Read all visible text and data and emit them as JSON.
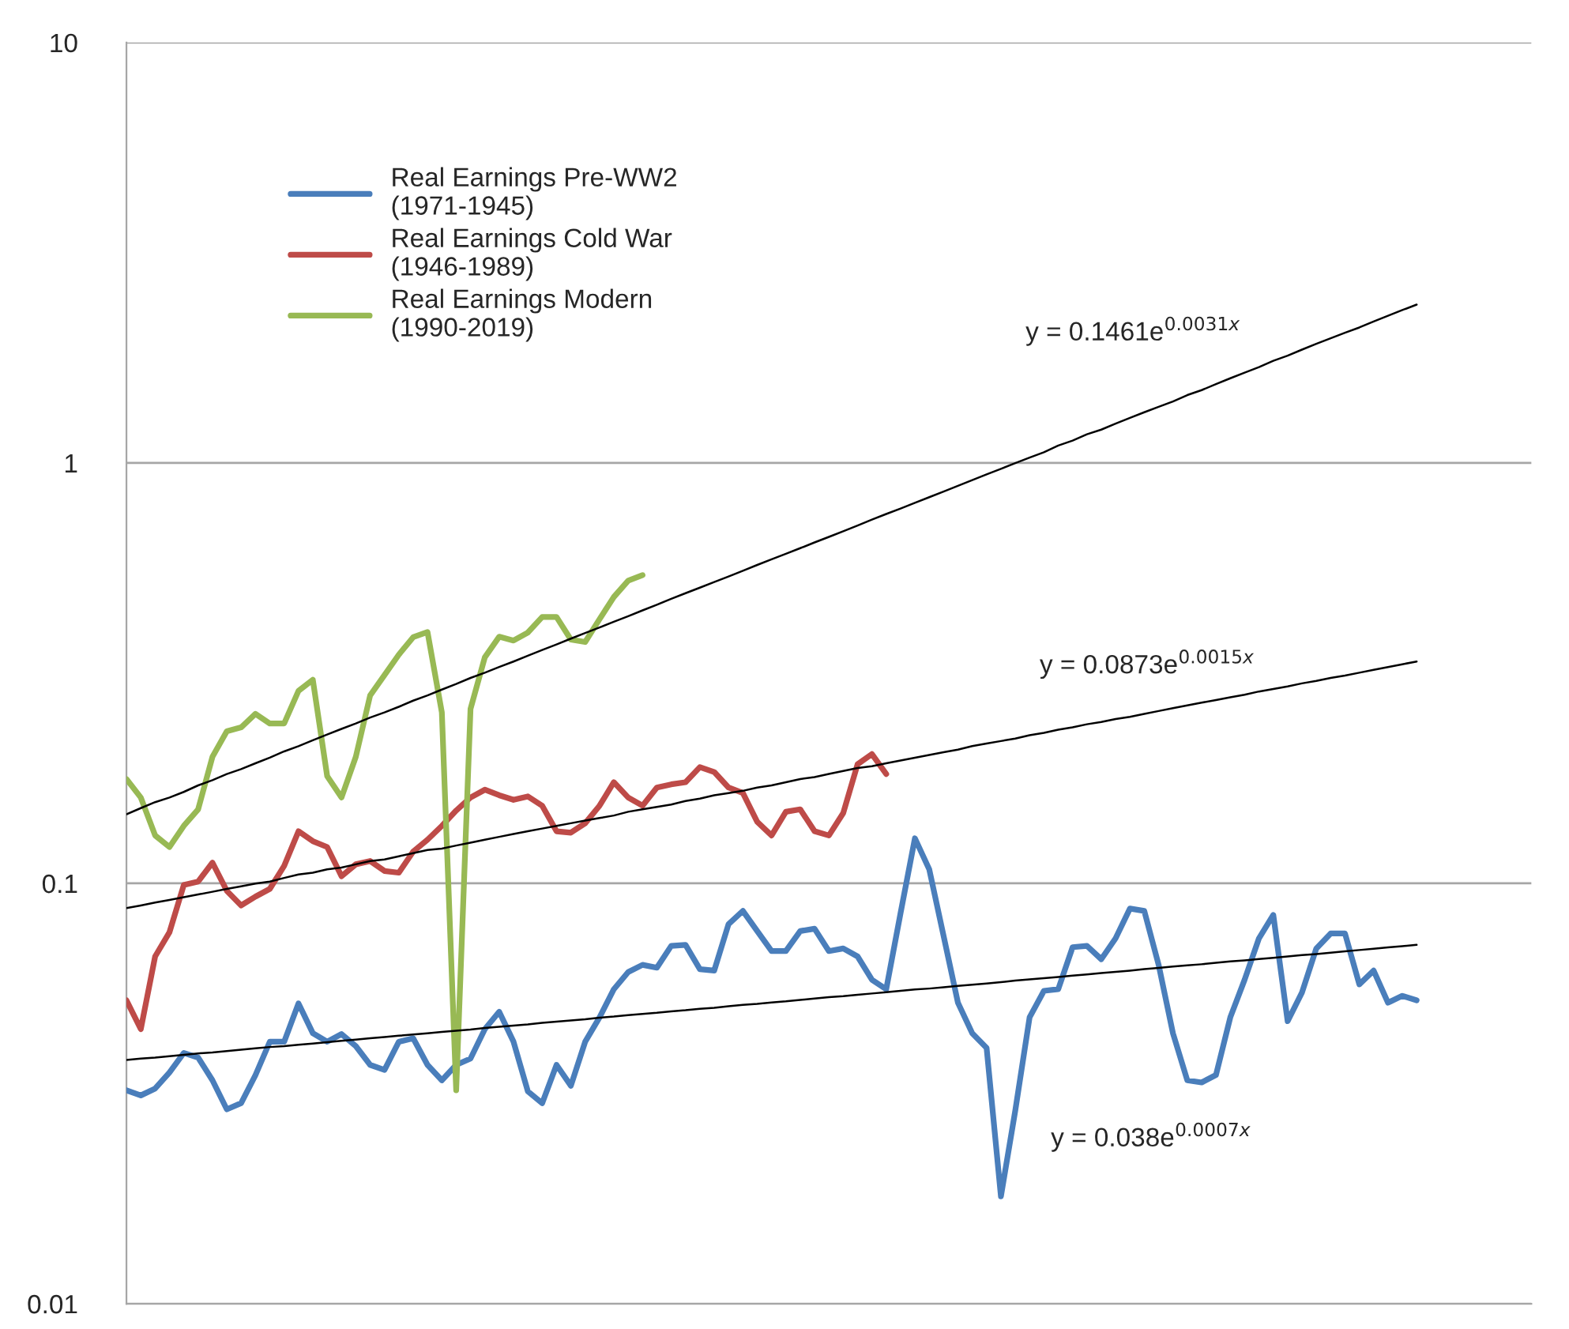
{
  "chart_data": {
    "type": "line",
    "log": "y",
    "ylim": [
      0.01,
      10
    ],
    "yticks": [
      0.01,
      0.1,
      1,
      10
    ],
    "tick_labels": "y",
    "grid": "y",
    "legend": "top left",
    "line_style": "solid",
    "marker": "none",
    "categories": [
      null,
      null,
      null,
      null,
      null,
      null,
      null,
      null,
      null,
      null,
      null,
      null,
      null,
      null,
      null,
      null,
      null,
      null,
      null,
      null,
      null,
      null,
      null,
      null,
      null,
      null,
      null,
      null,
      null,
      null,
      null,
      null,
      null,
      null,
      null,
      null,
      null,
      null,
      null,
      null,
      null,
      null,
      null,
      null,
      null,
      null,
      null,
      null,
      null,
      null,
      null,
      null,
      null,
      null,
      null,
      null,
      null,
      null,
      null,
      null,
      null,
      null,
      null,
      null,
      null,
      null,
      null,
      null,
      null,
      null,
      null,
      null,
      null,
      null,
      null,
      null,
      null,
      null,
      null,
      null,
      null,
      null,
      null,
      null,
      null,
      null,
      null,
      null,
      null,
      null,
      null,
      null,
      null,
      null,
      null,
      null,
      null,
      null,
      null
    ],
    "series": [
      {
        "name": "Real Earnings Pre-WW2\n(1971-1945)",
        "color": "#4a7ebb",
        "values": [
          0.0322,
          0.0313,
          0.0325,
          0.0355,
          0.0395,
          0.0385,
          0.034,
          0.029,
          0.03,
          0.035,
          0.042,
          0.042,
          0.0518,
          0.044,
          0.042,
          0.0438,
          0.041,
          0.037,
          0.036,
          0.042,
          0.0428,
          0.037,
          0.034,
          0.037,
          0.0383,
          0.045,
          0.0495,
          0.042,
          0.032,
          0.03,
          0.037,
          0.033,
          0.042,
          0.048,
          0.056,
          0.0615,
          0.064,
          0.063,
          0.071,
          0.0714,
          0.0625,
          0.062,
          0.08,
          0.086,
          0.077,
          0.069,
          0.069,
          0.077,
          0.078,
          0.069,
          0.07,
          0.067,
          0.059,
          0.056,
          0.085,
          0.128,
          0.108,
          0.075,
          0.052,
          0.044,
          0.0406,
          0.018,
          0.0288,
          0.048,
          0.0555,
          0.056,
          0.0705,
          0.071,
          0.066,
          0.074,
          0.0871,
          0.086,
          0.064,
          0.044,
          0.034,
          0.0336,
          0.035,
          0.048,
          0.059,
          0.074,
          0.0841,
          0.047,
          0.055,
          0.07,
          0.076,
          0.076,
          0.0575,
          0.062,
          0.052,
          0.054,
          0.0527,
          null,
          null,
          null,
          null,
          null,
          null,
          null,
          null
        ]
      },
      {
        "name": "Real Earnings Cold War\n(1946-1989)",
        "color": "#be4b48",
        "values": [
          0.0527,
          0.045,
          0.067,
          0.0765,
          0.0991,
          0.101,
          0.112,
          0.096,
          0.0886,
          0.093,
          0.097,
          0.11,
          0.133,
          0.126,
          0.122,
          0.104,
          0.111,
          0.113,
          0.107,
          0.106,
          0.119,
          0.127,
          0.137,
          0.149,
          0.16,
          0.167,
          0.162,
          0.158,
          0.161,
          0.153,
          0.133,
          0.132,
          0.139,
          0.153,
          0.174,
          0.16,
          0.153,
          0.169,
          0.172,
          0.174,
          0.189,
          0.184,
          0.169,
          0.164,
          0.14,
          0.13,
          0.148,
          0.15,
          0.133,
          0.13,
          0.147,
          0.192,
          0.203,
          0.182,
          null,
          null,
          null,
          null,
          null,
          null,
          null,
          null,
          null,
          null,
          null,
          null,
          null,
          null,
          null,
          null,
          null,
          null,
          null,
          null,
          null,
          null,
          null,
          null,
          null,
          null,
          null,
          null,
          null,
          null,
          null,
          null,
          null,
          null,
          null,
          null,
          null,
          null,
          null,
          null,
          null,
          null,
          null,
          null,
          null
        ]
      },
      {
        "name": "Real Earnings Modern\n(1990-2019)",
        "color": "#98b954",
        "values": [
          0.177,
          0.16,
          0.13,
          0.122,
          0.137,
          0.15,
          0.2,
          0.23,
          0.235,
          0.253,
          0.24,
          0.24,
          0.287,
          0.305,
          0.18,
          0.16,
          0.2,
          0.28,
          0.313,
          0.35,
          0.385,
          0.396,
          0.255,
          0.0322,
          0.26,
          0.345,
          0.386,
          0.378,
          0.395,
          0.43,
          0.43,
          0.38,
          0.375,
          0.425,
          0.48,
          0.525,
          0.541,
          null,
          null,
          null,
          null,
          null,
          null,
          null,
          null,
          null,
          null,
          null,
          null,
          null,
          null,
          null,
          null,
          null,
          null,
          null,
          null,
          null,
          null,
          null,
          null,
          null,
          null,
          null,
          null,
          null,
          null,
          null,
          null,
          null,
          null,
          null,
          null,
          null,
          null,
          null,
          null,
          null,
          null,
          null,
          null,
          null,
          null,
          null,
          null,
          null,
          null,
          null,
          null,
          null,
          null,
          null,
          null,
          null,
          null,
          null,
          null,
          null,
          null
        ]
      },
      {
        "type": "line",
        "color": "#000000",
        "values": [
          0.146,
          0.151,
          0.156,
          0.16,
          0.165,
          0.171,
          0.176,
          0.182,
          0.187,
          0.193,
          0.199,
          0.206,
          0.212,
          0.219,
          0.226,
          0.233,
          0.24,
          0.248,
          0.255,
          0.263,
          0.272,
          0.28,
          0.289,
          0.298,
          0.308,
          0.317,
          0.327,
          0.337,
          0.348,
          0.359,
          0.37,
          0.382,
          0.394,
          0.406,
          0.419,
          0.432,
          0.446,
          0.46,
          0.475,
          0.49,
          0.505,
          0.521,
          0.537,
          0.554,
          0.572,
          0.59,
          0.608,
          0.627,
          0.647,
          0.667,
          0.688,
          0.71,
          0.733,
          0.756,
          0.779,
          0.804,
          0.829,
          0.855,
          0.882,
          0.91,
          0.939,
          0.968,
          0.999,
          1.03,
          1.06,
          1.1,
          1.13,
          1.17,
          1.2,
          1.24,
          1.28,
          1.32,
          1.36,
          1.4,
          1.45,
          1.49,
          1.54,
          1.59,
          1.64,
          1.69,
          1.75,
          1.8,
          1.86,
          1.92,
          1.98,
          2.04,
          2.1,
          2.17,
          2.24,
          2.31,
          2.38,
          null,
          null,
          null,
          null,
          null,
          null,
          null,
          null
        ]
      },
      {
        "type": "line",
        "color": "#000000",
        "values": [
          0.0873,
          0.0886,
          0.09,
          0.0913,
          0.0927,
          0.0941,
          0.0955,
          0.097,
          0.0984,
          0.0999,
          0.101,
          0.103,
          0.105,
          0.106,
          0.108,
          0.109,
          0.111,
          0.113,
          0.114,
          0.116,
          0.118,
          0.12,
          0.121,
          0.123,
          0.125,
          0.127,
          0.129,
          0.131,
          0.133,
          0.135,
          0.137,
          0.139,
          0.141,
          0.143,
          0.145,
          0.148,
          0.15,
          0.152,
          0.154,
          0.157,
          0.159,
          0.162,
          0.164,
          0.166,
          0.169,
          0.171,
          0.174,
          0.177,
          0.179,
          0.182,
          0.185,
          0.188,
          0.19,
          0.193,
          0.196,
          0.199,
          0.202,
          0.205,
          0.208,
          0.212,
          0.215,
          0.218,
          0.221,
          0.225,
          0.228,
          0.232,
          0.235,
          0.239,
          0.242,
          0.246,
          0.249,
          0.253,
          0.257,
          0.261,
          0.265,
          0.269,
          0.273,
          0.277,
          0.281,
          0.286,
          0.29,
          0.294,
          0.299,
          0.303,
          0.308,
          0.312,
          0.317,
          0.322,
          0.327,
          0.332,
          0.337,
          null,
          null,
          null,
          null,
          null,
          null,
          null,
          null
        ]
      },
      {
        "type": "line",
        "color": "#000000",
        "values": [
          0.038,
          0.0383,
          0.0385,
          0.0388,
          0.0391,
          0.0394,
          0.0396,
          0.0399,
          0.0402,
          0.0405,
          0.0408,
          0.041,
          0.0413,
          0.0416,
          0.0419,
          0.0422,
          0.0425,
          0.0428,
          0.0431,
          0.0434,
          0.0437,
          0.044,
          0.0443,
          0.0446,
          0.0449,
          0.0453,
          0.0456,
          0.0459,
          0.0462,
          0.0466,
          0.0469,
          0.0472,
          0.0475,
          0.0479,
          0.0482,
          0.0486,
          0.0489,
          0.0492,
          0.0496,
          0.0499,
          0.0503,
          0.0506,
          0.051,
          0.0514,
          0.0517,
          0.0521,
          0.0524,
          0.0528,
          0.0532,
          0.0536,
          0.0539,
          0.0543,
          0.0547,
          0.0551,
          0.0555,
          0.0559,
          0.0562,
          0.0566,
          0.057,
          0.0574,
          0.0578,
          0.0582,
          0.0587,
          0.0591,
          0.0595,
          0.0599,
          0.0603,
          0.0607,
          0.0612,
          0.0616,
          0.062,
          0.0625,
          0.0629,
          0.0634,
          0.0638,
          0.0642,
          0.0647,
          0.0652,
          0.0656,
          0.0661,
          0.0665,
          0.067,
          0.0675,
          0.0679,
          0.0684,
          0.0689,
          0.0694,
          0.0699,
          0.0704,
          0.0709,
          0.0714,
          null,
          null,
          null,
          null,
          null,
          null,
          null,
          null
        ]
      }
    ],
    "annotations": [
      "y = 0.1461e$^{0.0031x}$",
      "y = 0.0873e$^{0.0015x}$",
      "y = 0.038e$^{0.0007x}$"
    ]
  }
}
